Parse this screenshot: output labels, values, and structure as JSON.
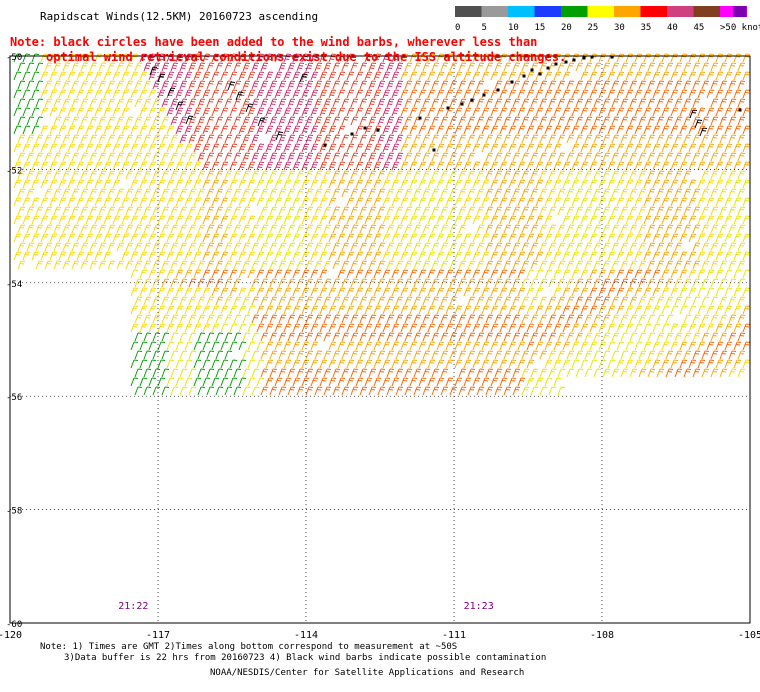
{
  "title": "Rapidscat Winds(12.5KM) 20160723 ascending",
  "warning": {
    "line1": "Note: black circles have been added to the wind barbs, wherever less than",
    "line2": "optimal wind retrieval conditions exist due to the ISS altitude changes."
  },
  "legend": {
    "bins": [
      {
        "label": "0",
        "color": "#505050"
      },
      {
        "label": "5",
        "color": "#9a9a9a"
      },
      {
        "label": "10",
        "color": "#00bfff"
      },
      {
        "label": "15",
        "color": "#1e3cff"
      },
      {
        "label": "20",
        "color": "#00a000"
      },
      {
        "label": "25",
        "color": "#ffff00"
      },
      {
        "label": "30",
        "color": "#ffa500"
      },
      {
        "label": "35",
        "color": "#ff0000"
      },
      {
        "label": "40",
        "color": "#d04080"
      },
      {
        "label": "45",
        "color": "#804020"
      },
      {
        "label": ">50 knots",
        "color": "#ff00ff"
      }
    ],
    "end_color": "#7a00b0"
  },
  "map": {
    "lon_min": -120,
    "lon_max": -105,
    "lat_min": -60,
    "lat_max": -50,
    "x_ticks": [
      "-120",
      "-117",
      "-114",
      "-111",
      "-108",
      "-105"
    ],
    "y_ticks": [
      "-50",
      "-52",
      "-54",
      "-56",
      "-58",
      "-60"
    ],
    "time_labels": [
      {
        "text": "21:22",
        "lon": -117.5
      },
      {
        "text": "21:23",
        "lon": -110.5
      }
    ],
    "time_label_color": "#800080"
  },
  "footer": {
    "note1": "Note: 1) Times are GMT 2)Times along bottom correspond to measurement at ~50S",
    "note2": "3)Data buffer is 22 hrs from 20160723 4) Black wind barbs indicate possible contamination",
    "credit": "NOAA/NESDIS/Center for Satellite Applications and Research"
  }
}
